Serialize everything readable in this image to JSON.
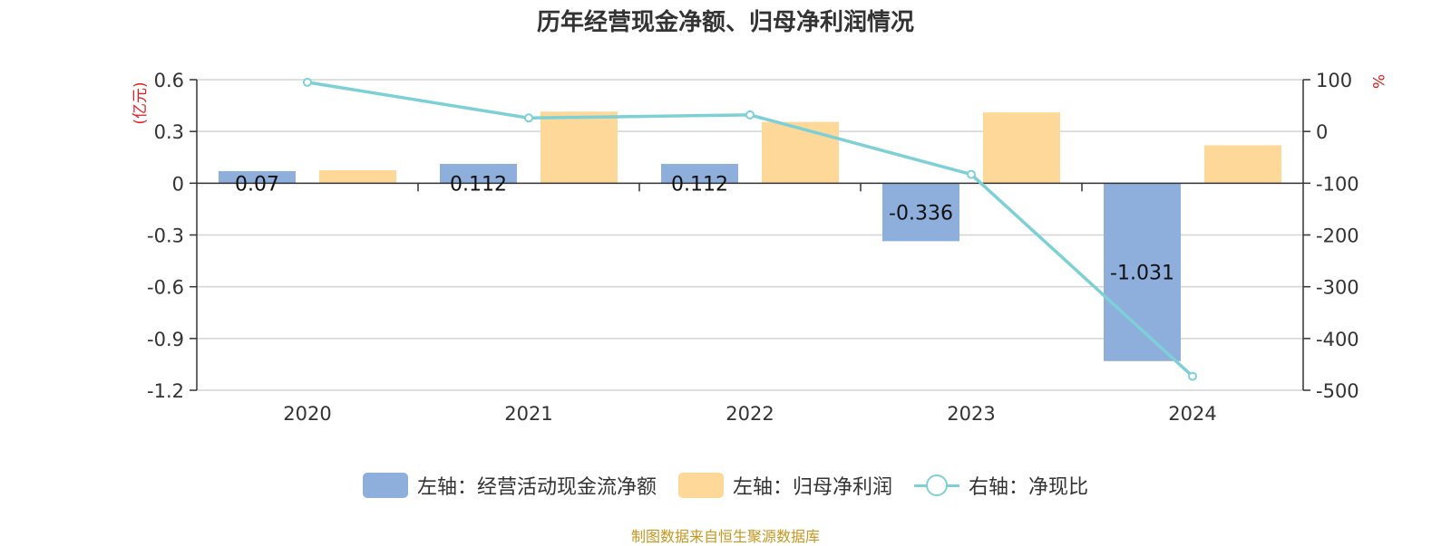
{
  "chart_data": {
    "type": "bar",
    "title": "历年经营现金净额、归母净利润情况",
    "categories": [
      "2020",
      "2021",
      "2022",
      "2023",
      "2024"
    ],
    "left_axis": {
      "unit": "(亿元)",
      "ylim": [
        -1.2,
        0.6
      ],
      "ticks": [
        "0.6",
        "0.3",
        "0",
        "-0.3",
        "-0.6",
        "-0.9",
        "-1.2"
      ]
    },
    "right_axis": {
      "unit": "%",
      "ylim": [
        -500,
        100
      ],
      "ticks": [
        "100",
        "0",
        "-100",
        "-200",
        "-300",
        "-400",
        "-500"
      ]
    },
    "series": [
      {
        "name": "左轴：经营活动现金流净额",
        "type": "bar",
        "axis": "left",
        "color": "#8eaedb",
        "values": [
          0.07,
          0.112,
          0.112,
          -0.336,
          -1.031
        ],
        "labels": [
          "0.07",
          "0.112",
          "0.112",
          "-0.336",
          "-1.031"
        ]
      },
      {
        "name": "左轴：归母净利润",
        "type": "bar",
        "axis": "left",
        "color": "#fdd898",
        "values": [
          0.075,
          0.415,
          0.355,
          0.41,
          0.22
        ]
      },
      {
        "name": "右轴：净现比",
        "type": "line",
        "axis": "right",
        "color": "#7dd0d6",
        "values": [
          95,
          26,
          32,
          -83,
          -473
        ]
      }
    ],
    "grid": true,
    "legend": "bottom"
  },
  "source": "制图数据来自恒生聚源数据库"
}
